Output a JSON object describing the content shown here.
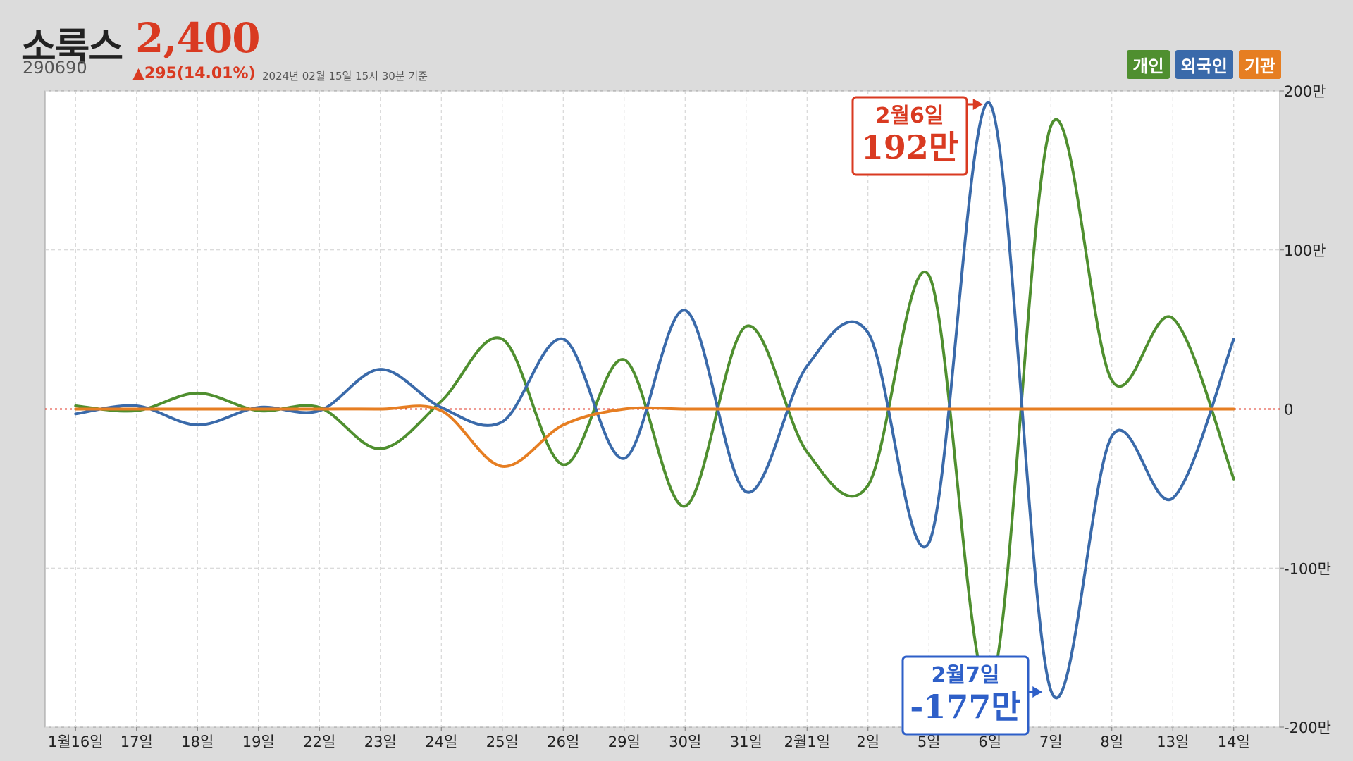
{
  "header": {
    "stock_name": "소룩스",
    "price": "2,400",
    "code": "290690",
    "change": "▲295(14.01%)",
    "timestamp": "2024년 02월 15일 15시 30분 기준"
  },
  "colors": {
    "individual": "#4f8f2f",
    "foreign": "#3a6aaa",
    "institution": "#e67e22",
    "accent_red": "#d93a21",
    "accent_blue": "#2e5fc8"
  },
  "legend": [
    {
      "label": "개인",
      "color": "#4f8f2f"
    },
    {
      "label": "외국인",
      "color": "#3a6aaa"
    },
    {
      "label": "기관",
      "color": "#e67e22"
    }
  ],
  "callouts": [
    {
      "date": "2월6일",
      "value": "192만",
      "color": "#d93a21",
      "series": "외국인",
      "index": 15
    },
    {
      "date": "2월7일",
      "value": "-177만",
      "color": "#2e5fc8",
      "series": "외국인",
      "index": 16
    }
  ],
  "chart_data": {
    "type": "line",
    "categories": [
      "1월16일",
      "17일",
      "18일",
      "19일",
      "22일",
      "23일",
      "24일",
      "25일",
      "26일",
      "29일",
      "30일",
      "31일",
      "2월1일",
      "2일",
      "5일",
      "6일",
      "7일",
      "8일",
      "13일",
      "14일"
    ],
    "y_tick_labels": [
      "200만",
      "100만",
      "0",
      "-100만",
      "-200만"
    ],
    "y_ticks": [
      200,
      100,
      0,
      -100,
      -200
    ],
    "ylim": [
      -200,
      200
    ],
    "y_unit": "만",
    "grid": true,
    "legend_position": "top-right",
    "series": [
      {
        "name": "개인",
        "values": [
          2,
          -1,
          10,
          -1,
          1,
          -25,
          5,
          44,
          -35,
          31,
          -61,
          52,
          -27,
          -48,
          84,
          -175,
          178,
          18,
          57,
          -44
        ]
      },
      {
        "name": "외국인",
        "values": [
          -3,
          2,
          -10,
          1,
          -1,
          25,
          1,
          -8,
          44,
          -31,
          62,
          -52,
          27,
          48,
          -84,
          192,
          -177,
          -17,
          -56,
          44
        ]
      },
      {
        "name": "기관",
        "values": [
          0,
          0,
          0,
          0,
          0,
          0,
          -1,
          -36,
          -10,
          0,
          0,
          0,
          0,
          0,
          0,
          0,
          0,
          0,
          0,
          0
        ]
      }
    ]
  }
}
